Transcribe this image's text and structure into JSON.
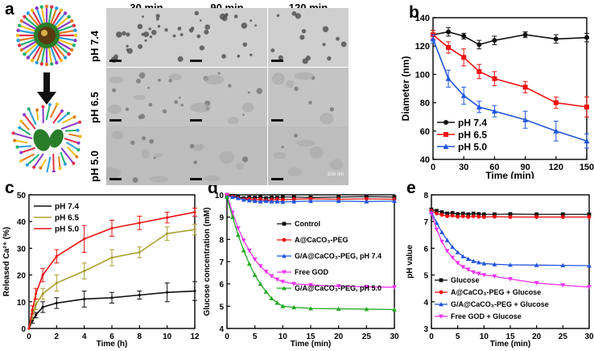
{
  "panel_letters": {
    "a": "a",
    "b": "b",
    "c": "c",
    "d": "d",
    "e": "e"
  },
  "tem": {
    "columns": [
      "30 min",
      "90 min",
      "120 min"
    ],
    "rows": [
      "pH 7.4",
      "pH 6.5",
      "pH 5.0"
    ],
    "scale_label": "500 nm"
  },
  "colors": {
    "black": "#111111",
    "red": "#ee1111",
    "blue": "#2255dd",
    "olive": "#a8a030",
    "magenta": "#ee33ee",
    "green": "#22aa22"
  },
  "chart_data": [
    {
      "id": "b",
      "type": "line",
      "xlabel": "Time (min)",
      "ylabel": "Diameter (nm)",
      "xlim": [
        0,
        150
      ],
      "ylim": [
        40,
        140
      ],
      "xticks": [
        0,
        30,
        60,
        90,
        120,
        150
      ],
      "yticks": [
        40,
        60,
        80,
        100,
        120,
        140
      ],
      "legend_position": "bottom-left",
      "series": [
        {
          "name": "pH 7.4",
          "color": "#111111",
          "marker": "circle",
          "x": [
            0,
            15,
            30,
            45,
            60,
            90,
            120,
            150
          ],
          "y": [
            128,
            130,
            127,
            121,
            124,
            128,
            125,
            126
          ],
          "err": [
            3,
            3,
            2,
            3,
            3,
            2,
            3,
            3
          ]
        },
        {
          "name": "pH 6.5",
          "color": "#ee1111",
          "marker": "square",
          "x": [
            0,
            15,
            30,
            45,
            60,
            90,
            120,
            150
          ],
          "y": [
            128,
            119,
            112,
            102,
            97,
            91,
            80,
            77
          ],
          "err": [
            3,
            4,
            6,
            5,
            5,
            4,
            4,
            7
          ]
        },
        {
          "name": "pH 5.0",
          "color": "#2255dd",
          "marker": "triangle",
          "x": [
            0,
            15,
            30,
            45,
            60,
            90,
            120,
            150
          ],
          "y": [
            125,
            97,
            85,
            77,
            74,
            68,
            60,
            53
          ],
          "err": [
            3,
            6,
            6,
            4,
            4,
            6,
            7,
            5
          ]
        }
      ]
    },
    {
      "id": "c",
      "type": "line",
      "xlabel": "Time (h)",
      "ylabel": "Released Ca²⁺ (%)",
      "xlim": [
        0,
        12
      ],
      "ylim": [
        0,
        50
      ],
      "xticks": [
        0,
        2,
        4,
        6,
        8,
        10,
        12
      ],
      "yticks": [
        0,
        10,
        20,
        30,
        40,
        50
      ],
      "legend_position": "top-left",
      "series": [
        {
          "name": "pH 7.4",
          "color": "#111111",
          "x": [
            0,
            0.25,
            0.5,
            1,
            2,
            4,
            6,
            8,
            10,
            12
          ],
          "y": [
            0,
            3,
            5,
            8,
            9.5,
            11,
            11.5,
            12.5,
            13.5,
            14
          ],
          "err": [
            0,
            1,
            1,
            2,
            2,
            3,
            2,
            1.5,
            3.5,
            3.5
          ]
        },
        {
          "name": "pH 6.5",
          "color": "#a8a030",
          "x": [
            0,
            0.25,
            0.5,
            1,
            2,
            4,
            6,
            8,
            10,
            12
          ],
          "y": [
            0,
            5,
            9,
            13,
            17,
            21.5,
            26.5,
            28.5,
            35.5,
            37
          ],
          "err": [
            0,
            1.5,
            2,
            2,
            3,
            3,
            3,
            2,
            2.5,
            2
          ]
        },
        {
          "name": "pH 5.0",
          "color": "#ee1111",
          "x": [
            0,
            0.25,
            0.5,
            1,
            2,
            4,
            6,
            8,
            10,
            12
          ],
          "y": [
            0,
            7,
            13,
            20,
            27,
            33.5,
            37.5,
            39.5,
            41.5,
            43.5
          ],
          "err": [
            0,
            1.5,
            2,
            2.5,
            2.5,
            5,
            3,
            2.5,
            2,
            1.5
          ]
        }
      ]
    },
    {
      "id": "d",
      "type": "line",
      "xlabel": "Time (min)",
      "ylabel": "Glucose concentration (mM)",
      "xlim": [
        0,
        30
      ],
      "ylim": [
        4,
        10
      ],
      "xticks": [
        0,
        5,
        10,
        15,
        20,
        25,
        30
      ],
      "yticks": [
        4,
        5,
        6,
        7,
        8,
        9,
        10
      ],
      "legend_position": "right",
      "series": [
        {
          "name": "Control",
          "color": "#111111",
          "marker": "square",
          "x": [
            0,
            1,
            2,
            3,
            4,
            5,
            6,
            7,
            8,
            9,
            10,
            12,
            15,
            20,
            25,
            30
          ],
          "y": [
            10,
            9.95,
            9.9,
            9.85,
            9.88,
            9.87,
            9.9,
            9.85,
            9.88,
            9.87,
            9.9,
            9.9,
            9.88,
            9.9,
            9.92,
            9.9
          ]
        },
        {
          "name": "A@CaCO₃-PEG",
          "color": "#ee1111",
          "marker": "circle",
          "x": [
            0,
            1,
            2,
            3,
            4,
            5,
            6,
            7,
            8,
            9,
            10,
            12,
            15,
            20,
            25,
            30
          ],
          "y": [
            10,
            9.92,
            9.85,
            9.8,
            9.82,
            9.78,
            9.8,
            9.75,
            9.78,
            9.8,
            9.78,
            9.8,
            9.82,
            9.8,
            9.82,
            9.8
          ]
        },
        {
          "name": "G/A@CaCO₃-PEG, pH 7.4",
          "color": "#2255dd",
          "marker": "triangle",
          "x": [
            0,
            1,
            2,
            3,
            4,
            5,
            6,
            7,
            8,
            9,
            10,
            12,
            15,
            20,
            25,
            30
          ],
          "y": [
            9.95,
            9.9,
            9.85,
            9.78,
            9.75,
            9.72,
            9.7,
            9.72,
            9.7,
            9.7,
            9.68,
            9.7,
            9.72,
            9.72,
            9.7,
            9.72
          ]
        },
        {
          "name": "Free GOD",
          "color": "#ee33ee",
          "marker": "triangle-down",
          "x": [
            0,
            1,
            2,
            3,
            4,
            5,
            6,
            7,
            8,
            9,
            10,
            12,
            15,
            20,
            25,
            30
          ],
          "y": [
            10,
            9.2,
            8.5,
            7.95,
            7.5,
            7.1,
            6.8,
            6.55,
            6.35,
            6.2,
            6.1,
            6.0,
            5.95,
            5.9,
            5.87,
            5.85
          ]
        },
        {
          "name": "G/A@CaCO₃-PEG, pH 5.0",
          "color": "#22aa22",
          "marker": "triangle",
          "x": [
            0,
            1,
            2,
            3,
            4,
            5,
            6,
            7,
            8,
            9,
            10,
            12,
            15,
            20,
            25,
            30
          ],
          "y": [
            9.9,
            9.0,
            8.2,
            7.5,
            6.9,
            6.4,
            6.0,
            5.65,
            5.35,
            5.15,
            5.0,
            4.95,
            4.9,
            4.88,
            4.87,
            4.85
          ]
        }
      ]
    },
    {
      "id": "e",
      "type": "line",
      "xlabel": "Time (min)",
      "ylabel": "pH value",
      "xlim": [
        0,
        30
      ],
      "ylim": [
        3,
        8
      ],
      "xticks": [
        0,
        5,
        10,
        15,
        20,
        25,
        30
      ],
      "yticks": [
        3,
        4,
        5,
        6,
        7,
        8
      ],
      "legend_position": "bottom-left",
      "series": [
        {
          "name": "Glucose",
          "color": "#111111",
          "marker": "square",
          "x": [
            0,
            1,
            2,
            3,
            4,
            5,
            6,
            7,
            8,
            9,
            10,
            12,
            15,
            20,
            25,
            30
          ],
          "y": [
            7.45,
            7.4,
            7.35,
            7.3,
            7.32,
            7.28,
            7.3,
            7.27,
            7.3,
            7.28,
            7.27,
            7.27,
            7.28,
            7.27,
            7.27,
            7.27
          ]
        },
        {
          "name": "A@CaCO₃-PEG + Glucose",
          "color": "#ee1111",
          "marker": "circle",
          "x": [
            0,
            1,
            2,
            3,
            4,
            5,
            6,
            7,
            8,
            9,
            10,
            12,
            15,
            20,
            25,
            30
          ],
          "y": [
            7.4,
            7.3,
            7.25,
            7.2,
            7.22,
            7.18,
            7.2,
            7.17,
            7.2,
            7.18,
            7.17,
            7.18,
            7.17,
            7.17,
            7.17,
            7.17
          ]
        },
        {
          "name": "G/A@CaCO₃-PEG + Glucose",
          "color": "#2255dd",
          "marker": "triangle",
          "x": [
            0,
            1,
            2,
            3,
            4,
            5,
            6,
            7,
            8,
            9,
            10,
            12,
            15,
            20,
            25,
            30
          ],
          "y": [
            7.35,
            6.95,
            6.6,
            6.3,
            6.05,
            5.85,
            5.7,
            5.6,
            5.52,
            5.47,
            5.43,
            5.4,
            5.38,
            5.37,
            5.36,
            5.35
          ]
        },
        {
          "name": "Free GOD + Glucose",
          "color": "#ee33ee",
          "marker": "triangle-down",
          "x": [
            0,
            1,
            2,
            3,
            4,
            5,
            6,
            7,
            8,
            9,
            10,
            12,
            15,
            20,
            25,
            30
          ],
          "y": [
            7.3,
            6.7,
            6.25,
            5.9,
            5.65,
            5.45,
            5.3,
            5.2,
            5.1,
            5.05,
            5.0,
            4.95,
            4.85,
            4.7,
            4.62,
            4.55
          ]
        }
      ]
    }
  ]
}
